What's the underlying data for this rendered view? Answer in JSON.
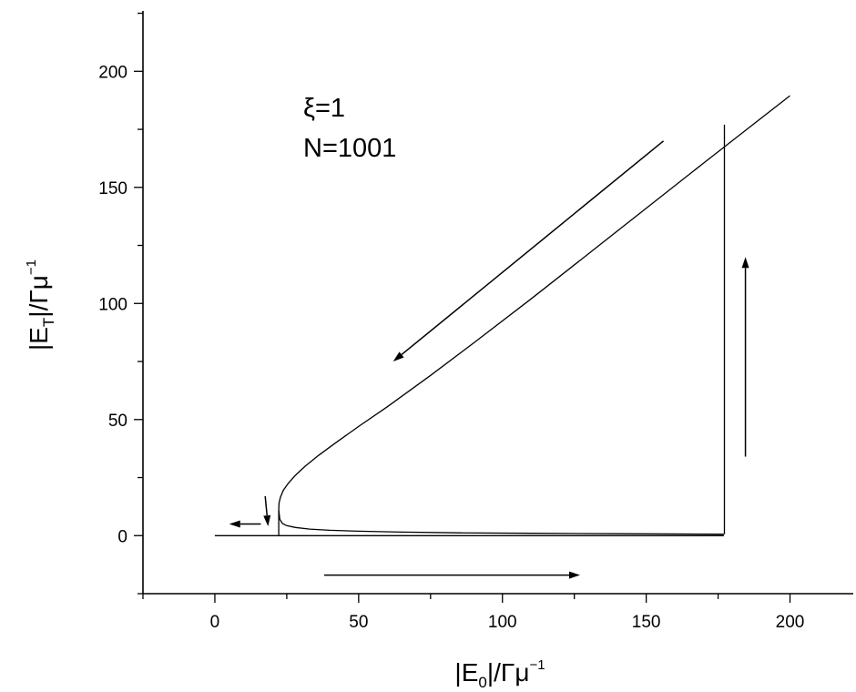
{
  "chart_data": {
    "type": "line",
    "title": "",
    "xlabel_parts": [
      "|E",
      "0",
      "|/Γμ",
      "−1"
    ],
    "ylabel_parts": [
      "|E",
      "T",
      "|/Γμ",
      "−1"
    ],
    "xlim": [
      -25,
      222
    ],
    "ylim": [
      -25,
      226
    ],
    "xticks": [
      0,
      50,
      100,
      150,
      200
    ],
    "yticks": [
      0,
      50,
      100,
      150,
      200
    ],
    "tick_labels_x": [
      "0",
      "50",
      "100",
      "150",
      "200"
    ],
    "tick_labels_y": [
      "0",
      "50",
      "100",
      "150",
      "200"
    ],
    "grid": false,
    "annotations": [
      "ξ=1",
      "N=1001"
    ],
    "series": [
      {
        "x": [
          22.2,
          22.3,
          22.8,
          23.8,
          25.5,
          28,
          31.5,
          36,
          42,
          50,
          60,
          75,
          90,
          110,
          130,
          150,
          170,
          185,
          200
        ],
        "y": [
          11,
          14,
          16.5,
          19.5,
          22.5,
          26,
          30,
          34.5,
          40,
          47,
          55.5,
          69,
          83,
          102,
          121.5,
          141,
          160.5,
          175,
          189.5
        ]
      },
      {
        "x": [
          22.2,
          22.6,
          23.5,
          25,
          28,
          33,
          40,
          50,
          65,
          85,
          110,
          140,
          177
        ],
        "y": [
          11,
          7,
          5.2,
          4.3,
          3.5,
          2.8,
          2.3,
          1.9,
          1.5,
          1.2,
          1,
          0.8,
          0.6
        ]
      },
      {
        "x": [
          0,
          22.2,
          177
        ],
        "y": [
          0,
          0,
          0
        ]
      },
      {
        "x": [
          22.2,
          22.2
        ],
        "y": [
          0,
          11
        ]
      },
      {
        "x": [
          177.2,
          177.2
        ],
        "y": [
          0.6,
          177
        ]
      }
    ],
    "arrows": [
      {
        "x": [
          156,
          62
        ],
        "y": [
          170,
          75
        ]
      },
      {
        "x": [
          184.5,
          184.5
        ],
        "y": [
          34,
          120
        ]
      },
      {
        "x": [
          38,
          127
        ],
        "y": [
          -17,
          -17
        ]
      },
      {
        "x": [
          16,
          5
        ],
        "y": [
          5,
          5
        ]
      },
      {
        "x": [
          17.5,
          18.5
        ],
        "y": [
          17,
          4
        ]
      }
    ]
  }
}
